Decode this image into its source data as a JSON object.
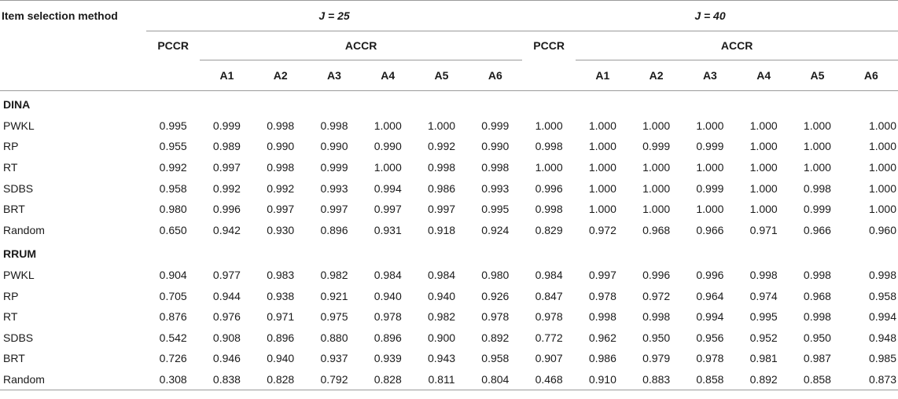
{
  "headers": {
    "method": "Item selection method",
    "j25": "J = 25",
    "j40": "J = 40",
    "pccr": "PCCR",
    "accr": "ACCR",
    "attrs": [
      "A1",
      "A2",
      "A3",
      "A4",
      "A5",
      "A6"
    ]
  },
  "sections": [
    {
      "name": "DINA",
      "rows": [
        {
          "method": "PWKL",
          "values": [
            "0.995",
            "0.999",
            "0.998",
            "0.998",
            "1.000",
            "1.000",
            "0.999",
            "1.000",
            "1.000",
            "1.000",
            "1.000",
            "1.000",
            "1.000",
            "1.000"
          ]
        },
        {
          "method": "RP",
          "values": [
            "0.955",
            "0.989",
            "0.990",
            "0.990",
            "0.990",
            "0.992",
            "0.990",
            "0.998",
            "1.000",
            "0.999",
            "0.999",
            "1.000",
            "1.000",
            "1.000"
          ]
        },
        {
          "method": "RT",
          "values": [
            "0.992",
            "0.997",
            "0.998",
            "0.999",
            "1.000",
            "0.998",
            "0.998",
            "1.000",
            "1.000",
            "1.000",
            "1.000",
            "1.000",
            "1.000",
            "1.000"
          ]
        },
        {
          "method": "SDBS",
          "values": [
            "0.958",
            "0.992",
            "0.992",
            "0.993",
            "0.994",
            "0.986",
            "0.993",
            "0.996",
            "1.000",
            "1.000",
            "0.999",
            "1.000",
            "0.998",
            "1.000"
          ]
        },
        {
          "method": "BRT",
          "values": [
            "0.980",
            "0.996",
            "0.997",
            "0.997",
            "0.997",
            "0.997",
            "0.995",
            "0.998",
            "1.000",
            "1.000",
            "1.000",
            "1.000",
            "0.999",
            "1.000"
          ]
        },
        {
          "method": "Random",
          "values": [
            "0.650",
            "0.942",
            "0.930",
            "0.896",
            "0.931",
            "0.918",
            "0.924",
            "0.829",
            "0.972",
            "0.968",
            "0.966",
            "0.971",
            "0.966",
            "0.960"
          ]
        }
      ]
    },
    {
      "name": "RRUM",
      "rows": [
        {
          "method": "PWKL",
          "values": [
            "0.904",
            "0.977",
            "0.983",
            "0.982",
            "0.984",
            "0.984",
            "0.980",
            "0.984",
            "0.997",
            "0.996",
            "0.996",
            "0.998",
            "0.998",
            "0.998"
          ]
        },
        {
          "method": "RP",
          "values": [
            "0.705",
            "0.944",
            "0.938",
            "0.921",
            "0.940",
            "0.940",
            "0.926",
            "0.847",
            "0.978",
            "0.972",
            "0.964",
            "0.974",
            "0.968",
            "0.958"
          ]
        },
        {
          "method": "RT",
          "values": [
            "0.876",
            "0.976",
            "0.971",
            "0.975",
            "0.978",
            "0.982",
            "0.978",
            "0.978",
            "0.998",
            "0.998",
            "0.994",
            "0.995",
            "0.998",
            "0.994"
          ]
        },
        {
          "method": "SDBS",
          "values": [
            "0.542",
            "0.908",
            "0.896",
            "0.880",
            "0.896",
            "0.900",
            "0.892",
            "0.772",
            "0.962",
            "0.950",
            "0.956",
            "0.952",
            "0.950",
            "0.948"
          ]
        },
        {
          "method": "BRT",
          "values": [
            "0.726",
            "0.946",
            "0.940",
            "0.937",
            "0.939",
            "0.943",
            "0.958",
            "0.907",
            "0.986",
            "0.979",
            "0.978",
            "0.981",
            "0.987",
            "0.985"
          ]
        },
        {
          "method": "Random",
          "values": [
            "0.308",
            "0.838",
            "0.828",
            "0.792",
            "0.828",
            "0.811",
            "0.804",
            "0.468",
            "0.910",
            "0.883",
            "0.858",
            "0.892",
            "0.858",
            "0.873"
          ]
        }
      ]
    }
  ]
}
